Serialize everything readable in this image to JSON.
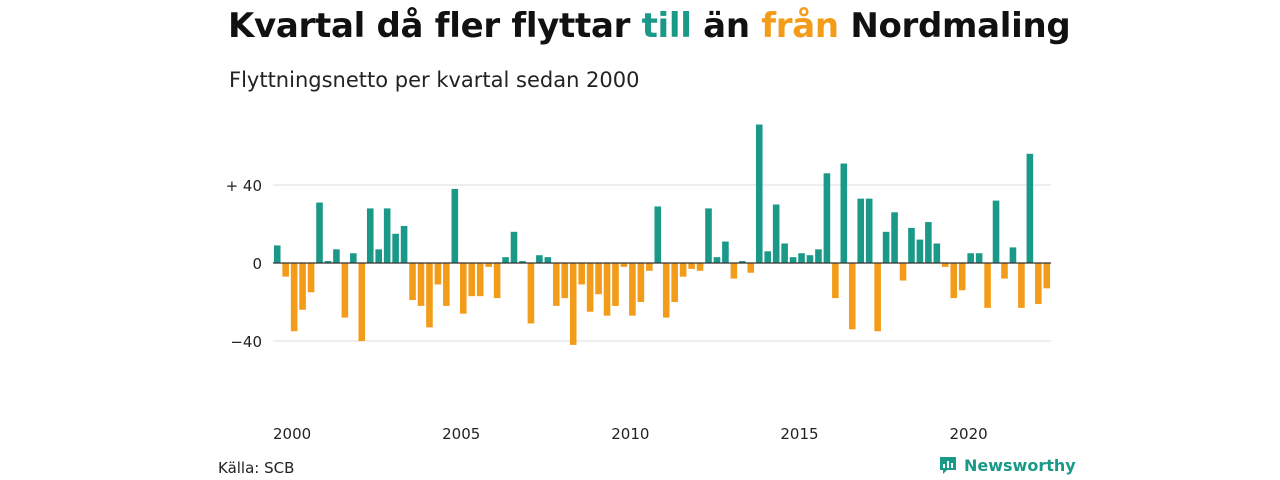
{
  "title": {
    "prefix": "Kvartal då fler flyttar ",
    "pos_word": "till",
    "middle": " än ",
    "neg_word": "från",
    "suffix": " Nordmaling"
  },
  "subtitle": "Flyttningsnetto per kvartal sedan 2000",
  "source": "Källa: SCB",
  "brand": {
    "name": "Newsworthy",
    "icon": "newsworthy-logo-icon"
  },
  "colors": {
    "positive": "#1a9988",
    "negative": "#f39c1a",
    "grid": "#dddddd",
    "zero_line": "#333333"
  },
  "chart_data": {
    "type": "bar",
    "start_year": 2000,
    "start_quarter": 1,
    "xticks": [
      "2000",
      "2005",
      "2010",
      "2015",
      "2020"
    ],
    "ylim": [
      -62,
      72
    ],
    "yticks": [
      40,
      0,
      -40
    ],
    "ytick_labels": [
      "+ 40",
      "0",
      "−40"
    ],
    "grid": true,
    "values": [
      9,
      -7,
      -35,
      -24,
      -15,
      31,
      1,
      7,
      -28,
      5,
      -40,
      28,
      7,
      28,
      15,
      19,
      -19,
      -22,
      -33,
      -11,
      -22,
      38,
      -26,
      -17,
      -17,
      -2,
      -18,
      3,
      16,
      1,
      -31,
      4,
      3,
      -22,
      -18,
      -42,
      -11,
      -25,
      -16,
      -27,
      -22,
      -2,
      -27,
      -20,
      -4,
      29,
      -28,
      -20,
      -7,
      -3,
      -4,
      28,
      3,
      11,
      -8,
      1,
      -5,
      71,
      6,
      30,
      10,
      3,
      5,
      4,
      7,
      46,
      -18,
      51,
      -34,
      33,
      33,
      -35,
      16,
      26,
      -9,
      18,
      12,
      21,
      10,
      -2,
      -18,
      -14,
      5,
      5,
      -23,
      32,
      -8,
      8,
      -23,
      56,
      -21,
      -13
    ]
  }
}
